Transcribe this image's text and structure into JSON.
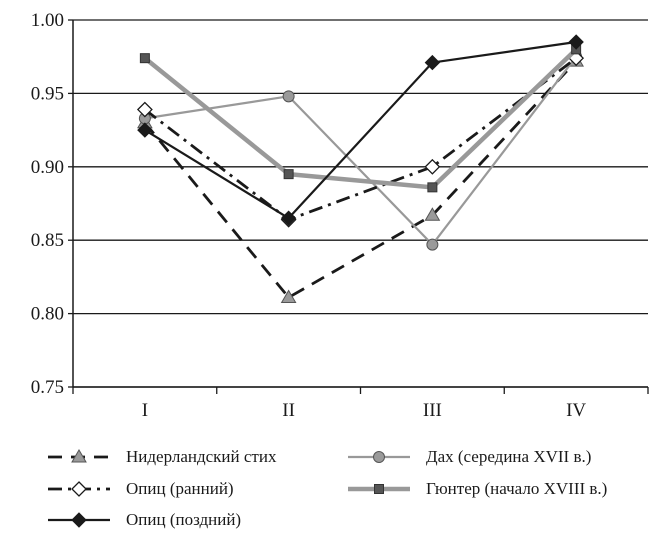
{
  "chart_data": {
    "type": "line",
    "categories": [
      "I",
      "II",
      "III",
      "IV"
    ],
    "ylim": [
      0.75,
      1.0
    ],
    "yticks": [
      "0.75",
      "0.80",
      "0.85",
      "0.90",
      "0.95",
      "1.00"
    ],
    "grid": true,
    "legend_position": "bottom",
    "title": "",
    "xlabel": "",
    "ylabel": "",
    "series": [
      {
        "name": "Нидерландский стих",
        "values": [
          0.93,
          0.811,
          0.867,
          0.972
        ],
        "color": "#1a1a1a",
        "dash": "dashed",
        "marker": "triangle"
      },
      {
        "name": "Дах (середина XVII в.)",
        "values": [
          0.933,
          0.948,
          0.847,
          0.975
        ],
        "color": "#999999",
        "dash": "solid",
        "marker": "circle"
      },
      {
        "name": "Опиц (ранний)",
        "values": [
          0.939,
          0.864,
          0.9,
          0.974
        ],
        "color": "#1a1a1a",
        "dash": "dash-dot",
        "marker": "diamond-open"
      },
      {
        "name": "Гюнтер (начало XVIII в.)",
        "values": [
          0.974,
          0.895,
          0.886,
          0.98
        ],
        "color": "#999999",
        "dash": "solid-thick",
        "marker": "square"
      },
      {
        "name": "Опиц (поздний)",
        "values": [
          0.925,
          0.865,
          0.971,
          0.985
        ],
        "color": "#1a1a1a",
        "dash": "solid",
        "marker": "diamond"
      }
    ]
  }
}
